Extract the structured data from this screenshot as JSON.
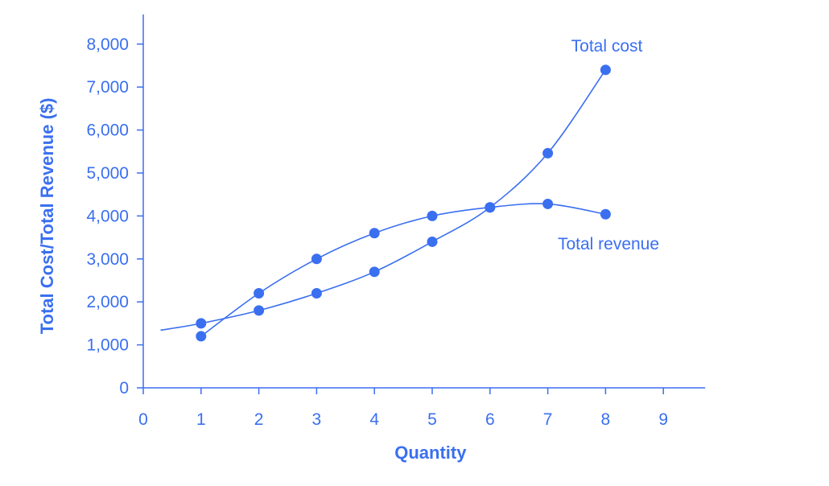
{
  "chart_data": {
    "type": "line",
    "title": "",
    "xlabel": "Quantity",
    "ylabel": "Total Cost/Total Revenue ($)",
    "xlim": [
      0,
      9
    ],
    "ylim": [
      0,
      8000
    ],
    "x_ticks": [
      "0",
      "1",
      "2",
      "3",
      "4",
      "5",
      "6",
      "7",
      "8",
      "9"
    ],
    "y_ticks": [
      "0",
      "1,000",
      "2,000",
      "3,000",
      "4,000",
      "5,000",
      "6,000",
      "7,000",
      "8,000"
    ],
    "grid": false,
    "legend": "none",
    "color": "#3a6ff0",
    "series": [
      {
        "name": "Total cost",
        "curve_start": [
          0.3,
          1340
        ],
        "points": [
          [
            1,
            1500
          ],
          [
            2,
            1800
          ],
          [
            3,
            2200
          ],
          [
            4,
            2700
          ],
          [
            5,
            3400
          ],
          [
            6,
            4200
          ],
          [
            7,
            5460
          ],
          [
            8,
            7400
          ]
        ]
      },
      {
        "name": "Total revenue",
        "points": [
          [
            1,
            1200
          ],
          [
            2,
            2200
          ],
          [
            3,
            3000
          ],
          [
            4,
            3600
          ],
          [
            5,
            4000
          ],
          [
            6,
            4200
          ],
          [
            7,
            4280
          ],
          [
            8,
            4040
          ]
        ]
      }
    ]
  }
}
